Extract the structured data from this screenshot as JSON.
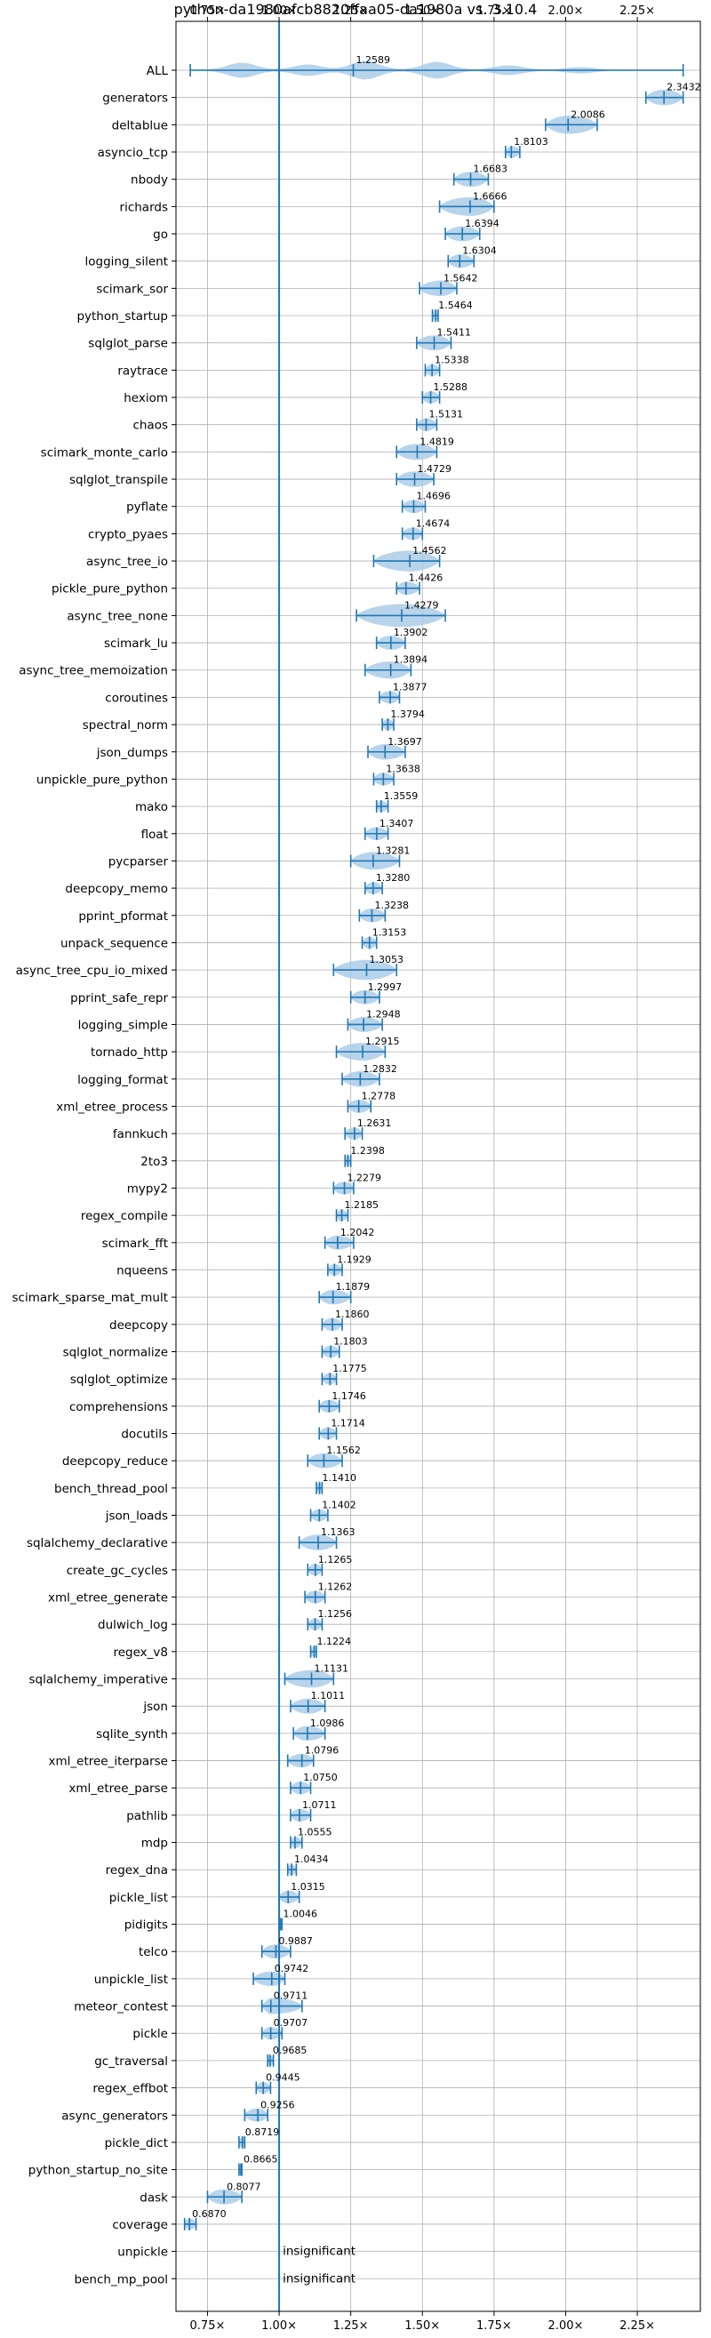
{
  "chart_data": {
    "type": "violin",
    "title": "python-da1980afcb8820ffaa05-da1980a vs. 3.10.4",
    "xlim": [
      0.64,
      2.47
    ],
    "xticks": [
      0.75,
      1.0,
      1.25,
      1.5,
      1.75,
      2.0,
      2.25
    ],
    "xtick_labels": [
      "0.75×",
      "1.00×",
      "1.25×",
      "1.50×",
      "1.75×",
      "2.00×",
      "2.25×"
    ],
    "reference_line": 1.0,
    "grid": true,
    "accent_color": "#1f77b4",
    "violin_color": "#a6c9e6",
    "benchmarks": [
      {
        "name": "ALL",
        "label": "1.2589",
        "median": 1.2589,
        "min": 0.69,
        "max": 2.41
      },
      {
        "name": "generators",
        "label": "2.3432",
        "median": 2.3432,
        "min": 2.28,
        "max": 2.41
      },
      {
        "name": "deltablue",
        "label": "2.0086",
        "median": 2.0086,
        "min": 1.93,
        "max": 2.11
      },
      {
        "name": "asyncio_tcp",
        "label": "1.8103",
        "median": 1.8103,
        "min": 1.79,
        "max": 1.84
      },
      {
        "name": "nbody",
        "label": "1.6683",
        "median": 1.6683,
        "min": 1.61,
        "max": 1.73
      },
      {
        "name": "richards",
        "label": "1.6666",
        "median": 1.6666,
        "min": 1.56,
        "max": 1.75
      },
      {
        "name": "go",
        "label": "1.6394",
        "median": 1.6394,
        "min": 1.58,
        "max": 1.7
      },
      {
        "name": "logging_silent",
        "label": "1.6304",
        "median": 1.6304,
        "min": 1.59,
        "max": 1.68
      },
      {
        "name": "scimark_sor",
        "label": "1.5642",
        "median": 1.5642,
        "min": 1.49,
        "max": 1.62
      },
      {
        "name": "python_startup",
        "label": "1.5464",
        "median": 1.5464,
        "min": 1.535,
        "max": 1.555
      },
      {
        "name": "sqlglot_parse",
        "label": "1.5411",
        "median": 1.5411,
        "min": 1.48,
        "max": 1.6
      },
      {
        "name": "raytrace",
        "label": "1.5338",
        "median": 1.5338,
        "min": 1.51,
        "max": 1.56
      },
      {
        "name": "hexiom",
        "label": "1.5288",
        "median": 1.5288,
        "min": 1.5,
        "max": 1.56
      },
      {
        "name": "chaos",
        "label": "1.5131",
        "median": 1.5131,
        "min": 1.48,
        "max": 1.55
      },
      {
        "name": "scimark_monte_carlo",
        "label": "1.4819",
        "median": 1.4819,
        "min": 1.41,
        "max": 1.55
      },
      {
        "name": "sqlglot_transpile",
        "label": "1.4729",
        "median": 1.4729,
        "min": 1.41,
        "max": 1.54
      },
      {
        "name": "pyflate",
        "label": "1.4696",
        "median": 1.4696,
        "min": 1.43,
        "max": 1.51
      },
      {
        "name": "crypto_pyaes",
        "label": "1.4674",
        "median": 1.4674,
        "min": 1.43,
        "max": 1.5
      },
      {
        "name": "async_tree_io",
        "label": "1.4562",
        "median": 1.4562,
        "min": 1.33,
        "max": 1.56
      },
      {
        "name": "pickle_pure_python",
        "label": "1.4426",
        "median": 1.4426,
        "min": 1.41,
        "max": 1.49
      },
      {
        "name": "async_tree_none",
        "label": "1.4279",
        "median": 1.4279,
        "min": 1.27,
        "max": 1.58
      },
      {
        "name": "scimark_lu",
        "label": "1.3902",
        "median": 1.3902,
        "min": 1.34,
        "max": 1.44
      },
      {
        "name": "async_tree_memoization",
        "label": "1.3894",
        "median": 1.3894,
        "min": 1.3,
        "max": 1.46
      },
      {
        "name": "coroutines",
        "label": "1.3877",
        "median": 1.3877,
        "min": 1.35,
        "max": 1.42
      },
      {
        "name": "spectral_norm",
        "label": "1.3794",
        "median": 1.3794,
        "min": 1.36,
        "max": 1.4
      },
      {
        "name": "json_dumps",
        "label": "1.3697",
        "median": 1.3697,
        "min": 1.31,
        "max": 1.44
      },
      {
        "name": "unpickle_pure_python",
        "label": "1.3638",
        "median": 1.3638,
        "min": 1.33,
        "max": 1.4
      },
      {
        "name": "mako",
        "label": "1.3559",
        "median": 1.3559,
        "min": 1.34,
        "max": 1.38
      },
      {
        "name": "float",
        "label": "1.3407",
        "median": 1.3407,
        "min": 1.3,
        "max": 1.38
      },
      {
        "name": "pycparser",
        "label": "1.3281",
        "median": 1.3281,
        "min": 1.25,
        "max": 1.42
      },
      {
        "name": "deepcopy_memo",
        "label": "1.3280",
        "median": 1.328,
        "min": 1.3,
        "max": 1.36
      },
      {
        "name": "pprint_pformat",
        "label": "1.3238",
        "median": 1.3238,
        "min": 1.28,
        "max": 1.37
      },
      {
        "name": "unpack_sequence",
        "label": "1.3153",
        "median": 1.3153,
        "min": 1.29,
        "max": 1.34
      },
      {
        "name": "async_tree_cpu_io_mixed",
        "label": "1.3053",
        "median": 1.3053,
        "min": 1.19,
        "max": 1.41
      },
      {
        "name": "pprint_safe_repr",
        "label": "1.2997",
        "median": 1.2997,
        "min": 1.25,
        "max": 1.35
      },
      {
        "name": "logging_simple",
        "label": "1.2948",
        "median": 1.2948,
        "min": 1.24,
        "max": 1.36
      },
      {
        "name": "tornado_http",
        "label": "1.2915",
        "median": 1.2915,
        "min": 1.2,
        "max": 1.37
      },
      {
        "name": "logging_format",
        "label": "1.2832",
        "median": 1.2832,
        "min": 1.22,
        "max": 1.35
      },
      {
        "name": "xml_etree_process",
        "label": "1.2778",
        "median": 1.2778,
        "min": 1.24,
        "max": 1.32
      },
      {
        "name": "fannkuch",
        "label": "1.2631",
        "median": 1.2631,
        "min": 1.23,
        "max": 1.29
      },
      {
        "name": "2to3",
        "label": "1.2398",
        "median": 1.2398,
        "min": 1.23,
        "max": 1.25
      },
      {
        "name": "mypy2",
        "label": "1.2279",
        "median": 1.2279,
        "min": 1.19,
        "max": 1.26
      },
      {
        "name": "regex_compile",
        "label": "1.2185",
        "median": 1.2185,
        "min": 1.2,
        "max": 1.24
      },
      {
        "name": "scimark_fft",
        "label": "1.2042",
        "median": 1.2042,
        "min": 1.16,
        "max": 1.26
      },
      {
        "name": "nqueens",
        "label": "1.1929",
        "median": 1.1929,
        "min": 1.17,
        "max": 1.22
      },
      {
        "name": "scimark_sparse_mat_mult",
        "label": "1.1879",
        "median": 1.1879,
        "min": 1.14,
        "max": 1.25
      },
      {
        "name": "deepcopy",
        "label": "1.1860",
        "median": 1.186,
        "min": 1.15,
        "max": 1.22
      },
      {
        "name": "sqlglot_normalize",
        "label": "1.1803",
        "median": 1.1803,
        "min": 1.15,
        "max": 1.21
      },
      {
        "name": "sqlglot_optimize",
        "label": "1.1775",
        "median": 1.1775,
        "min": 1.15,
        "max": 1.2
      },
      {
        "name": "comprehensions",
        "label": "1.1746",
        "median": 1.1746,
        "min": 1.14,
        "max": 1.21
      },
      {
        "name": "docutils",
        "label": "1.1714",
        "median": 1.1714,
        "min": 1.14,
        "max": 1.2
      },
      {
        "name": "deepcopy_reduce",
        "label": "1.1562",
        "median": 1.1562,
        "min": 1.1,
        "max": 1.22
      },
      {
        "name": "bench_thread_pool",
        "label": "1.1410",
        "median": 1.141,
        "min": 1.13,
        "max": 1.15
      },
      {
        "name": "json_loads",
        "label": "1.1402",
        "median": 1.1402,
        "min": 1.11,
        "max": 1.17
      },
      {
        "name": "sqlalchemy_declarative",
        "label": "1.1363",
        "median": 1.1363,
        "min": 1.07,
        "max": 1.2
      },
      {
        "name": "create_gc_cycles",
        "label": "1.1265",
        "median": 1.1265,
        "min": 1.1,
        "max": 1.15
      },
      {
        "name": "xml_etree_generate",
        "label": "1.1262",
        "median": 1.1262,
        "min": 1.09,
        "max": 1.16
      },
      {
        "name": "dulwich_log",
        "label": "1.1256",
        "median": 1.1256,
        "min": 1.1,
        "max": 1.15
      },
      {
        "name": "regex_v8",
        "label": "1.1224",
        "median": 1.1224,
        "min": 1.11,
        "max": 1.13
      },
      {
        "name": "sqlalchemy_imperative",
        "label": "1.1131",
        "median": 1.1131,
        "min": 1.02,
        "max": 1.19
      },
      {
        "name": "json",
        "label": "1.1011",
        "median": 1.1011,
        "min": 1.04,
        "max": 1.16
      },
      {
        "name": "sqlite_synth",
        "label": "1.0986",
        "median": 1.0986,
        "min": 1.05,
        "max": 1.16
      },
      {
        "name": "xml_etree_iterparse",
        "label": "1.0796",
        "median": 1.0796,
        "min": 1.03,
        "max": 1.12
      },
      {
        "name": "xml_etree_parse",
        "label": "1.0750",
        "median": 1.075,
        "min": 1.04,
        "max": 1.11
      },
      {
        "name": "pathlib",
        "label": "1.0711",
        "median": 1.0711,
        "min": 1.04,
        "max": 1.11
      },
      {
        "name": "mdp",
        "label": "1.0555",
        "median": 1.0555,
        "min": 1.04,
        "max": 1.08
      },
      {
        "name": "regex_dna",
        "label": "1.0434",
        "median": 1.0434,
        "min": 1.03,
        "max": 1.06
      },
      {
        "name": "pickle_list",
        "label": "1.0315",
        "median": 1.0315,
        "min": 1.0,
        "max": 1.07
      },
      {
        "name": "pidigits",
        "label": "1.0046",
        "median": 1.0046,
        "min": 1.0,
        "max": 1.01
      },
      {
        "name": "telco",
        "label": "0.9887",
        "median": 0.9887,
        "min": 0.94,
        "max": 1.04
      },
      {
        "name": "unpickle_list",
        "label": "0.9742",
        "median": 0.9742,
        "min": 0.91,
        "max": 1.02
      },
      {
        "name": "meteor_contest",
        "label": "0.9711",
        "median": 0.9711,
        "min": 0.94,
        "max": 1.08
      },
      {
        "name": "pickle",
        "label": "0.9707",
        "median": 0.9707,
        "min": 0.94,
        "max": 1.01
      },
      {
        "name": "gc_traversal",
        "label": "0.9685",
        "median": 0.9685,
        "min": 0.96,
        "max": 0.98
      },
      {
        "name": "regex_effbot",
        "label": "0.9445",
        "median": 0.9445,
        "min": 0.92,
        "max": 0.97
      },
      {
        "name": "async_generators",
        "label": "0.9256",
        "median": 0.9256,
        "min": 0.88,
        "max": 0.96
      },
      {
        "name": "pickle_dict",
        "label": "0.8719",
        "median": 0.8719,
        "min": 0.86,
        "max": 0.88
      },
      {
        "name": "python_startup_no_site",
        "label": "0.8665",
        "median": 0.8665,
        "min": 0.86,
        "max": 0.87
      },
      {
        "name": "dask",
        "label": "0.8077",
        "median": 0.8077,
        "min": 0.75,
        "max": 0.87
      },
      {
        "name": "coverage",
        "label": "0.6870",
        "median": 0.687,
        "min": 0.67,
        "max": 0.71
      },
      {
        "name": "unpickle",
        "label": "insignificant",
        "median": null,
        "min": null,
        "max": null
      },
      {
        "name": "bench_mp_pool",
        "label": "insignificant",
        "median": null,
        "min": null,
        "max": null
      }
    ]
  }
}
